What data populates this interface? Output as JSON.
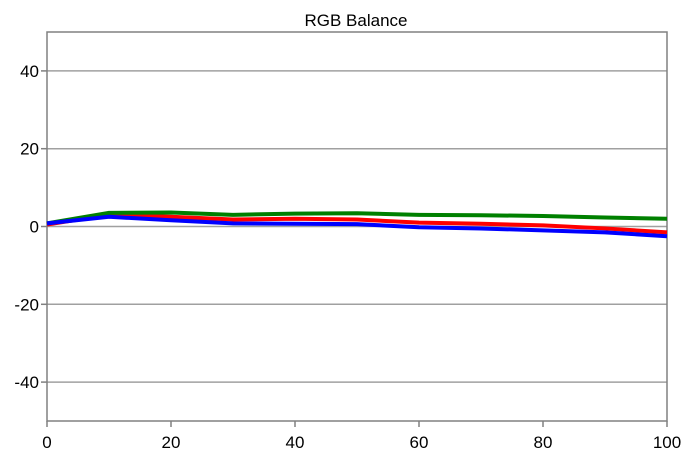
{
  "chart_data": {
    "type": "line",
    "title": "RGB Balance",
    "xlabel": "",
    "ylabel": "",
    "xlim": [
      0,
      100
    ],
    "ylim": [
      -50,
      50
    ],
    "x_ticks": [
      0,
      20,
      40,
      60,
      80,
      100
    ],
    "y_ticks": [
      40,
      20,
      0,
      -20,
      -40
    ],
    "x_tick_labels": [
      "0",
      "20",
      "40",
      "60",
      "80",
      "100"
    ],
    "y_tick_labels": [
      "40",
      "20",
      "0",
      "-20",
      "-40"
    ],
    "horizontal_grid": true,
    "vertical_grid": false,
    "legend": "none",
    "x": [
      0,
      10,
      20,
      30,
      40,
      50,
      60,
      70,
      80,
      90,
      100
    ],
    "series": [
      {
        "color": "#ff0000",
        "values": [
          0.5,
          3.0,
          2.5,
          1.8,
          2.0,
          1.8,
          1.0,
          0.7,
          0.3,
          -0.5,
          -1.5
        ]
      },
      {
        "color": "#008000",
        "values": [
          0.8,
          3.5,
          3.6,
          3.0,
          3.3,
          3.4,
          3.0,
          2.9,
          2.7,
          2.3,
          2.0
        ]
      },
      {
        "color": "#0000ff",
        "values": [
          0.8,
          2.5,
          1.6,
          0.8,
          0.7,
          0.6,
          -0.2,
          -0.5,
          -1.0,
          -1.5,
          -2.5
        ]
      }
    ],
    "colors": {
      "grid": "#a0a0a0",
      "axis": "#808080"
    }
  }
}
